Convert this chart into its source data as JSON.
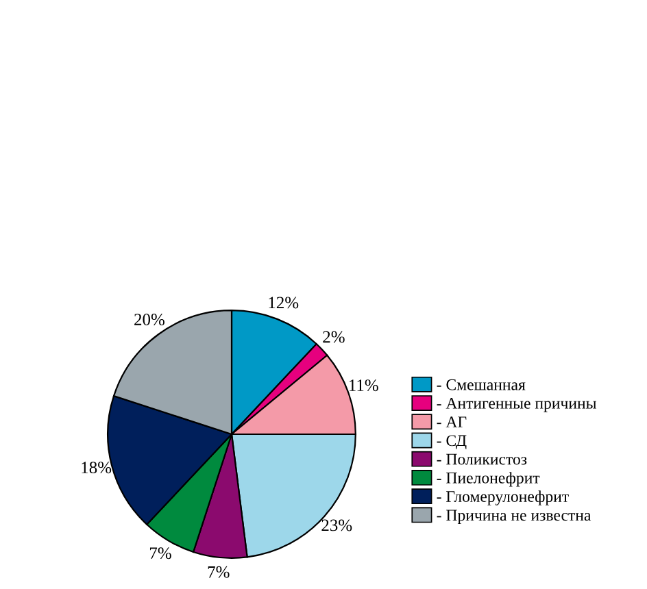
{
  "chart_data": {
    "type": "pie",
    "categories": [
      "- Смешанная",
      "- Антигенные причины",
      "- АГ",
      "- СД",
      "- Поликистоз",
      "- Пиелонефрит",
      "- Гломерулонефрит",
      "- Причина не известна"
    ],
    "values": [
      12,
      2,
      11,
      23,
      7,
      7,
      18,
      20
    ],
    "value_labels": [
      "12%",
      "2%",
      "11%",
      "23%",
      "7%",
      "7%",
      "18%",
      "20%"
    ],
    "colors": [
      "#0099c6",
      "#e6007e",
      "#f49aa8",
      "#9dd7ea",
      "#8b0a6e",
      "#008a3e",
      "#001f5b",
      "#9aa6ad"
    ],
    "legend": "right"
  }
}
